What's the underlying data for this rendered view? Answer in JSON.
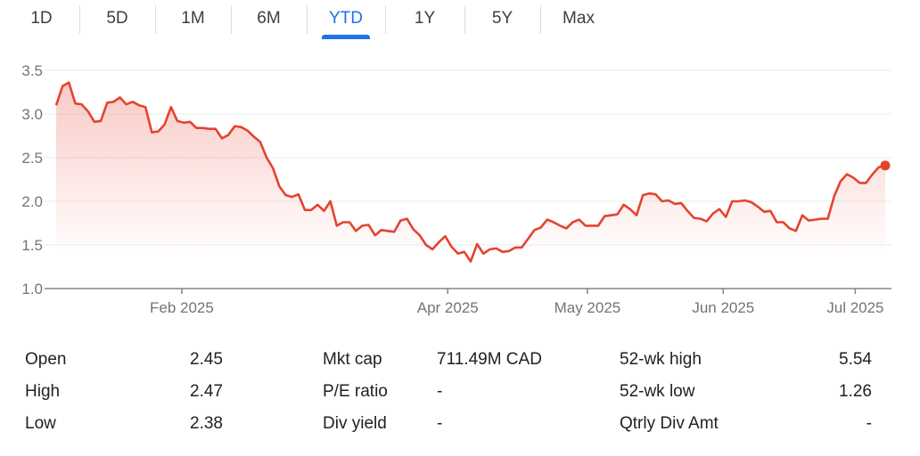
{
  "tabs": [
    {
      "label": "1D",
      "selected": false
    },
    {
      "label": "5D",
      "selected": false
    },
    {
      "label": "1M",
      "selected": false
    },
    {
      "label": "6M",
      "selected": false
    },
    {
      "label": "YTD",
      "selected": true
    },
    {
      "label": "1Y",
      "selected": false
    },
    {
      "label": "5Y",
      "selected": false
    },
    {
      "label": "Max",
      "selected": false
    }
  ],
  "colors": {
    "line": "#e5432f",
    "accent": "#1a73e8",
    "grid": "#f1f3f4",
    "axis": "#80868b",
    "tick_text": "#70757a"
  },
  "chart_data": {
    "type": "area",
    "title": "",
    "xlabel": "",
    "ylabel": "",
    "ylim": [
      1.0,
      3.5
    ],
    "yticks": [
      "1.0",
      "1.5",
      "2.0",
      "2.5",
      "3.0",
      "3.5"
    ],
    "grid": true,
    "xticks": [
      {
        "label": "Feb 2025",
        "at": 19.7
      },
      {
        "label": "Apr 2025",
        "at": 61.4
      },
      {
        "label": "May 2025",
        "at": 83.3
      },
      {
        "label": "Jun 2025",
        "at": 104.6
      },
      {
        "label": "Jul 2025",
        "at": 125.3
      }
    ],
    "values": [
      3.1,
      3.32,
      3.36,
      3.12,
      3.11,
      3.03,
      2.91,
      2.92,
      3.13,
      3.14,
      3.19,
      3.11,
      3.14,
      3.1,
      3.08,
      2.79,
      2.8,
      2.88,
      3.08,
      2.92,
      2.9,
      2.91,
      2.84,
      2.84,
      2.83,
      2.83,
      2.72,
      2.76,
      2.86,
      2.85,
      2.81,
      2.74,
      2.68,
      2.5,
      2.38,
      2.17,
      2.07,
      2.05,
      2.08,
      1.9,
      1.9,
      1.96,
      1.89,
      2.0,
      1.72,
      1.76,
      1.76,
      1.66,
      1.72,
      1.73,
      1.61,
      1.67,
      1.66,
      1.65,
      1.78,
      1.8,
      1.68,
      1.61,
      1.5,
      1.45,
      1.53,
      1.6,
      1.48,
      1.4,
      1.42,
      1.31,
      1.51,
      1.4,
      1.45,
      1.46,
      1.42,
      1.43,
      1.47,
      1.47,
      1.57,
      1.67,
      1.7,
      1.79,
      1.76,
      1.72,
      1.69,
      1.76,
      1.79,
      1.72,
      1.72,
      1.72,
      1.83,
      1.84,
      1.85,
      1.96,
      1.91,
      1.84,
      2.07,
      2.09,
      2.08,
      2.0,
      2.01,
      1.97,
      1.98,
      1.89,
      1.81,
      1.8,
      1.77,
      1.86,
      1.91,
      1.82,
      2.0,
      2.0,
      2.01,
      1.99,
      1.94,
      1.88,
      1.89,
      1.76,
      1.76,
      1.69,
      1.66,
      1.84,
      1.78,
      1.79,
      1.8,
      1.8,
      2.06,
      2.23,
      2.31,
      2.27,
      2.21,
      2.21,
      2.31,
      2.39,
      2.41
    ]
  },
  "stats": {
    "col1": [
      {
        "label": "Open",
        "value": "2.45"
      },
      {
        "label": "High",
        "value": "2.47"
      },
      {
        "label": "Low",
        "value": "2.38"
      }
    ],
    "col2": [
      {
        "label": "Mkt cap",
        "value": "711.49M CAD"
      },
      {
        "label": "P/E ratio",
        "value": "-"
      },
      {
        "label": "Div yield",
        "value": "-"
      }
    ],
    "col3": [
      {
        "label": "52-wk high",
        "value": "5.54"
      },
      {
        "label": "52-wk low",
        "value": "1.26"
      },
      {
        "label": "Qtrly Div Amt",
        "value": "-"
      }
    ]
  }
}
